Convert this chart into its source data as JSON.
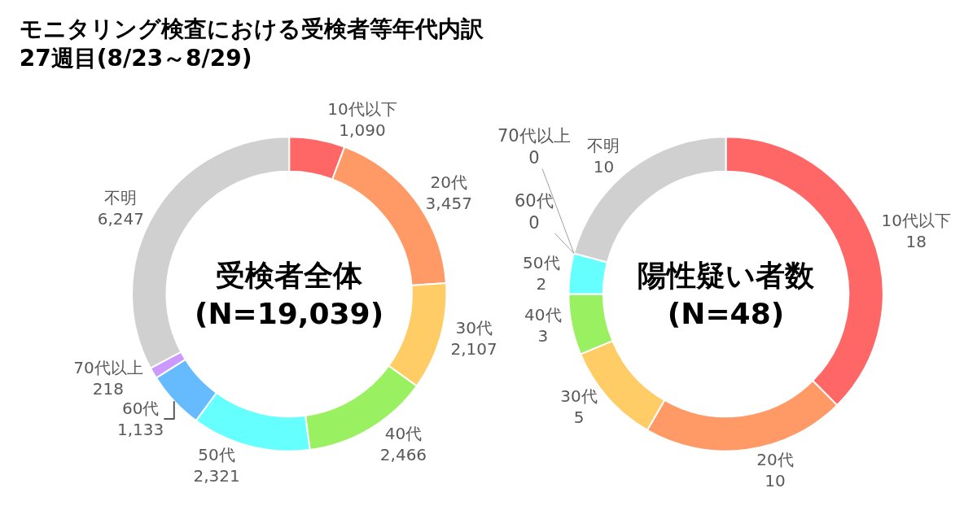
{
  "chart_data": [
    {
      "type": "donut",
      "title": "モニタリング検査における受検者等年代内訳\n27週目(8/23～8/29)",
      "annotations": [
        "受検者全体\n(N=19,039)"
      ],
      "categories": [
        "10代以下",
        "20代",
        "30代",
        "40代",
        "50代",
        "60代",
        "70代以上",
        "不明"
      ],
      "values": [
        1090,
        3457,
        2107,
        2466,
        2321,
        1133,
        218,
        6247
      ],
      "value_labels": [
        "1,090",
        "3,457",
        "2,107",
        "2,466",
        "2,321",
        "1,133",
        "218",
        "6,247"
      ],
      "colors": [
        "#ff6666",
        "#ff9966",
        "#ffcc66",
        "#99f060",
        "#66ffff",
        "#66bbff",
        "#cc99ff",
        "#d0d0d0"
      ],
      "legend": false
    },
    {
      "type": "donut",
      "annotations": [
        "陽性疑い者数\n(N=48)"
      ],
      "categories": [
        "10代以下",
        "20代",
        "30代",
        "40代",
        "50代",
        "60代",
        "70代以上",
        "不明"
      ],
      "values": [
        18,
        10,
        5,
        3,
        2,
        0,
        0,
        10
      ],
      "value_labels": [
        "18",
        "10",
        "5",
        "3",
        "2",
        "0",
        "0",
        "10"
      ],
      "colors": [
        "#ff6666",
        "#ff9966",
        "#ffcc66",
        "#99f060",
        "#66ffff",
        "#66bbff",
        "#cc99ff",
        "#d0d0d0"
      ],
      "legend": false
    }
  ]
}
